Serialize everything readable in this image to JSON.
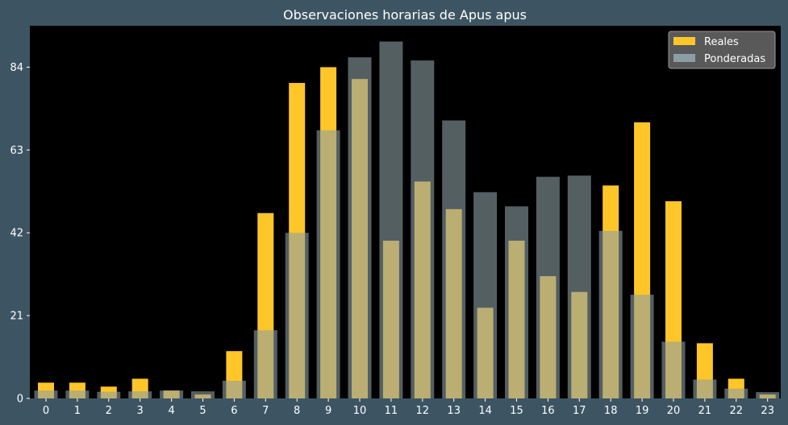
{
  "chart_data": {
    "type": "bar",
    "title": "Observaciones horarias de Apus apus",
    "xlabel": "",
    "ylabel": "",
    "categories": [
      "0",
      "1",
      "2",
      "3",
      "4",
      "5",
      "6",
      "7",
      "8",
      "9",
      "10",
      "11",
      "12",
      "13",
      "14",
      "15",
      "16",
      "17",
      "18",
      "19",
      "20",
      "21",
      "22",
      "23"
    ],
    "ylim": [
      0,
      94.5
    ],
    "yticks": [
      0,
      21,
      42,
      63,
      84
    ],
    "grid": false,
    "legend_position": "top-right",
    "series": [
      {
        "name": "Reales",
        "color": "#ffc629",
        "values": [
          4,
          4,
          3,
          5,
          2,
          1,
          12,
          47,
          80,
          84,
          81,
          40,
          55,
          48,
          23,
          40,
          31,
          27,
          54,
          70,
          50,
          14,
          5,
          1
        ]
      },
      {
        "name": "Ponderadas",
        "color": "#8c9ea4",
        "values": [
          2,
          2,
          1.7,
          1.8,
          2,
          1.8,
          4.5,
          17.3,
          42,
          68,
          86.5,
          90.5,
          85.7,
          70.5,
          52.3,
          48.7,
          56.2,
          56.5,
          42.5,
          26.3,
          14.4,
          4.8,
          2.5,
          1.6
        ]
      }
    ]
  }
}
